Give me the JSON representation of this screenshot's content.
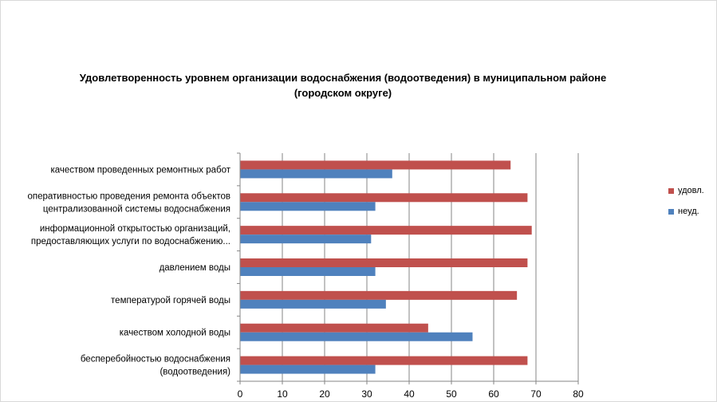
{
  "chart_data": {
    "type": "bar",
    "orientation": "horizontal",
    "title_lines": [
      "Удовлетворенность уровнем организации водоснабжения (водоотведения) в муниципальном районе",
      "(городском округе)"
    ],
    "categories": [
      [
        "качеством  проведенных  ремонтных работ"
      ],
      [
        "оперативностью  проведения  ремонта объектов",
        "централизованной системы водоснабжения"
      ],
      [
        "информационной открытостью организаций,",
        "предоставляющих услуги по водоснабжению..."
      ],
      [
        "давлением  воды"
      ],
      [
        "температурой горячей воды"
      ],
      [
        "качеством  холодной воды"
      ],
      [
        "бесперебойностью  водоснабжения",
        "(водоотведения)"
      ]
    ],
    "series": [
      {
        "name": "удовл.",
        "color": "#c0504d",
        "values": [
          64,
          68,
          69,
          68,
          65.5,
          44.5,
          68
        ]
      },
      {
        "name": "неуд.",
        "color": "#4f81bd",
        "values": [
          36,
          32,
          31,
          32,
          34.5,
          55,
          32
        ]
      }
    ],
    "xlim": [
      0,
      80
    ],
    "xticks": [
      0,
      10,
      20,
      30,
      40,
      50,
      60,
      70,
      80
    ],
    "grid": true,
    "legend_position": "right"
  }
}
